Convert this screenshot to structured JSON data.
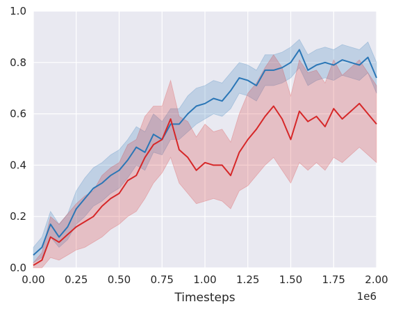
{
  "chart_data": {
    "type": "line",
    "title": "",
    "xlabel": "Timesteps",
    "ylabel": "",
    "x_offset_label": "1e6",
    "xlim": [
      0,
      2.0
    ],
    "ylim": [
      0,
      1.0
    ],
    "xticks": [
      0,
      0.25,
      0.5,
      0.75,
      1.0,
      1.25,
      1.5,
      1.75,
      2.0
    ],
    "xtick_labels": [
      "0.00",
      "0.25",
      "0.50",
      "0.75",
      "1.00",
      "1.25",
      "1.50",
      "1.75",
      "2.00"
    ],
    "yticks": [
      0,
      0.2,
      0.4,
      0.6,
      0.8,
      1.0
    ],
    "ytick_labels": [
      "0.0",
      "0.2",
      "0.4",
      "0.6",
      "0.8",
      "1.0"
    ],
    "grid": true,
    "background": "#e9e9f1",
    "x": [
      0,
      0.05,
      0.1,
      0.15,
      0.2,
      0.25,
      0.3,
      0.35,
      0.4,
      0.45,
      0.5,
      0.55,
      0.6,
      0.65,
      0.7,
      0.75,
      0.8,
      0.85,
      0.9,
      0.95,
      1.0,
      1.05,
      1.1,
      1.15,
      1.2,
      1.25,
      1.3,
      1.35,
      1.4,
      1.45,
      1.5,
      1.55,
      1.6,
      1.65,
      1.7,
      1.75,
      1.8,
      1.85,
      1.9,
      1.95,
      2.0
    ],
    "series": [
      {
        "color": "#2a76b6",
        "values": [
          0.05,
          0.08,
          0.17,
          0.12,
          0.16,
          0.23,
          0.27,
          0.31,
          0.33,
          0.36,
          0.38,
          0.42,
          0.47,
          0.45,
          0.52,
          0.5,
          0.56,
          0.56,
          0.6,
          0.63,
          0.64,
          0.66,
          0.65,
          0.69,
          0.74,
          0.73,
          0.71,
          0.77,
          0.77,
          0.78,
          0.8,
          0.85,
          0.77,
          0.79,
          0.8,
          0.79,
          0.81,
          0.8,
          0.79,
          0.82,
          0.74
        ],
        "lower": [
          0.02,
          0.04,
          0.12,
          0.08,
          0.11,
          0.17,
          0.2,
          0.24,
          0.26,
          0.29,
          0.31,
          0.35,
          0.4,
          0.38,
          0.45,
          0.44,
          0.5,
          0.5,
          0.53,
          0.56,
          0.58,
          0.6,
          0.59,
          0.62,
          0.68,
          0.67,
          0.65,
          0.71,
          0.71,
          0.72,
          0.74,
          0.78,
          0.71,
          0.73,
          0.74,
          0.73,
          0.75,
          0.74,
          0.73,
          0.76,
          0.68
        ],
        "upper": [
          0.08,
          0.12,
          0.22,
          0.17,
          0.21,
          0.3,
          0.35,
          0.39,
          0.41,
          0.44,
          0.46,
          0.5,
          0.55,
          0.53,
          0.6,
          0.57,
          0.62,
          0.62,
          0.67,
          0.7,
          0.71,
          0.73,
          0.72,
          0.76,
          0.8,
          0.79,
          0.77,
          0.83,
          0.83,
          0.84,
          0.86,
          0.89,
          0.83,
          0.85,
          0.86,
          0.85,
          0.87,
          0.86,
          0.85,
          0.88,
          0.8
        ]
      },
      {
        "color": "#d62728",
        "values": [
          0.01,
          0.03,
          0.12,
          0.1,
          0.13,
          0.16,
          0.18,
          0.2,
          0.24,
          0.27,
          0.29,
          0.34,
          0.36,
          0.43,
          0.48,
          0.5,
          0.58,
          0.46,
          0.43,
          0.38,
          0.41,
          0.4,
          0.4,
          0.36,
          0.45,
          0.5,
          0.54,
          0.59,
          0.63,
          0.58,
          0.5,
          0.61,
          0.57,
          0.59,
          0.55,
          0.62,
          0.58,
          0.61,
          0.64,
          0.6,
          0.56
        ],
        "lower": [
          0.0,
          0.0,
          0.04,
          0.03,
          0.05,
          0.07,
          0.08,
          0.1,
          0.12,
          0.15,
          0.17,
          0.2,
          0.22,
          0.27,
          0.33,
          0.37,
          0.43,
          0.33,
          0.29,
          0.25,
          0.26,
          0.27,
          0.26,
          0.23,
          0.3,
          0.32,
          0.36,
          0.4,
          0.43,
          0.38,
          0.33,
          0.41,
          0.38,
          0.41,
          0.38,
          0.43,
          0.41,
          0.44,
          0.47,
          0.44,
          0.41
        ]
      }
    ]
  }
}
